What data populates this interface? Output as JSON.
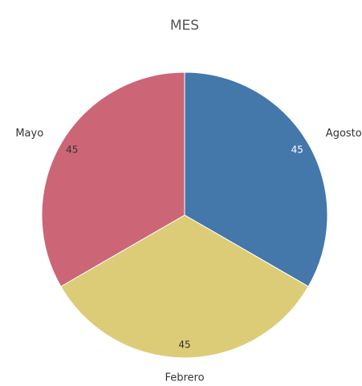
{
  "chart_data": {
    "type": "pie",
    "title": "MES",
    "categories": [
      "Agosto",
      "Febrero",
      "Mayo"
    ],
    "values": [
      45,
      45,
      45
    ],
    "colors": [
      "#4477aa",
      "#ddcc77",
      "#cc6677"
    ]
  }
}
